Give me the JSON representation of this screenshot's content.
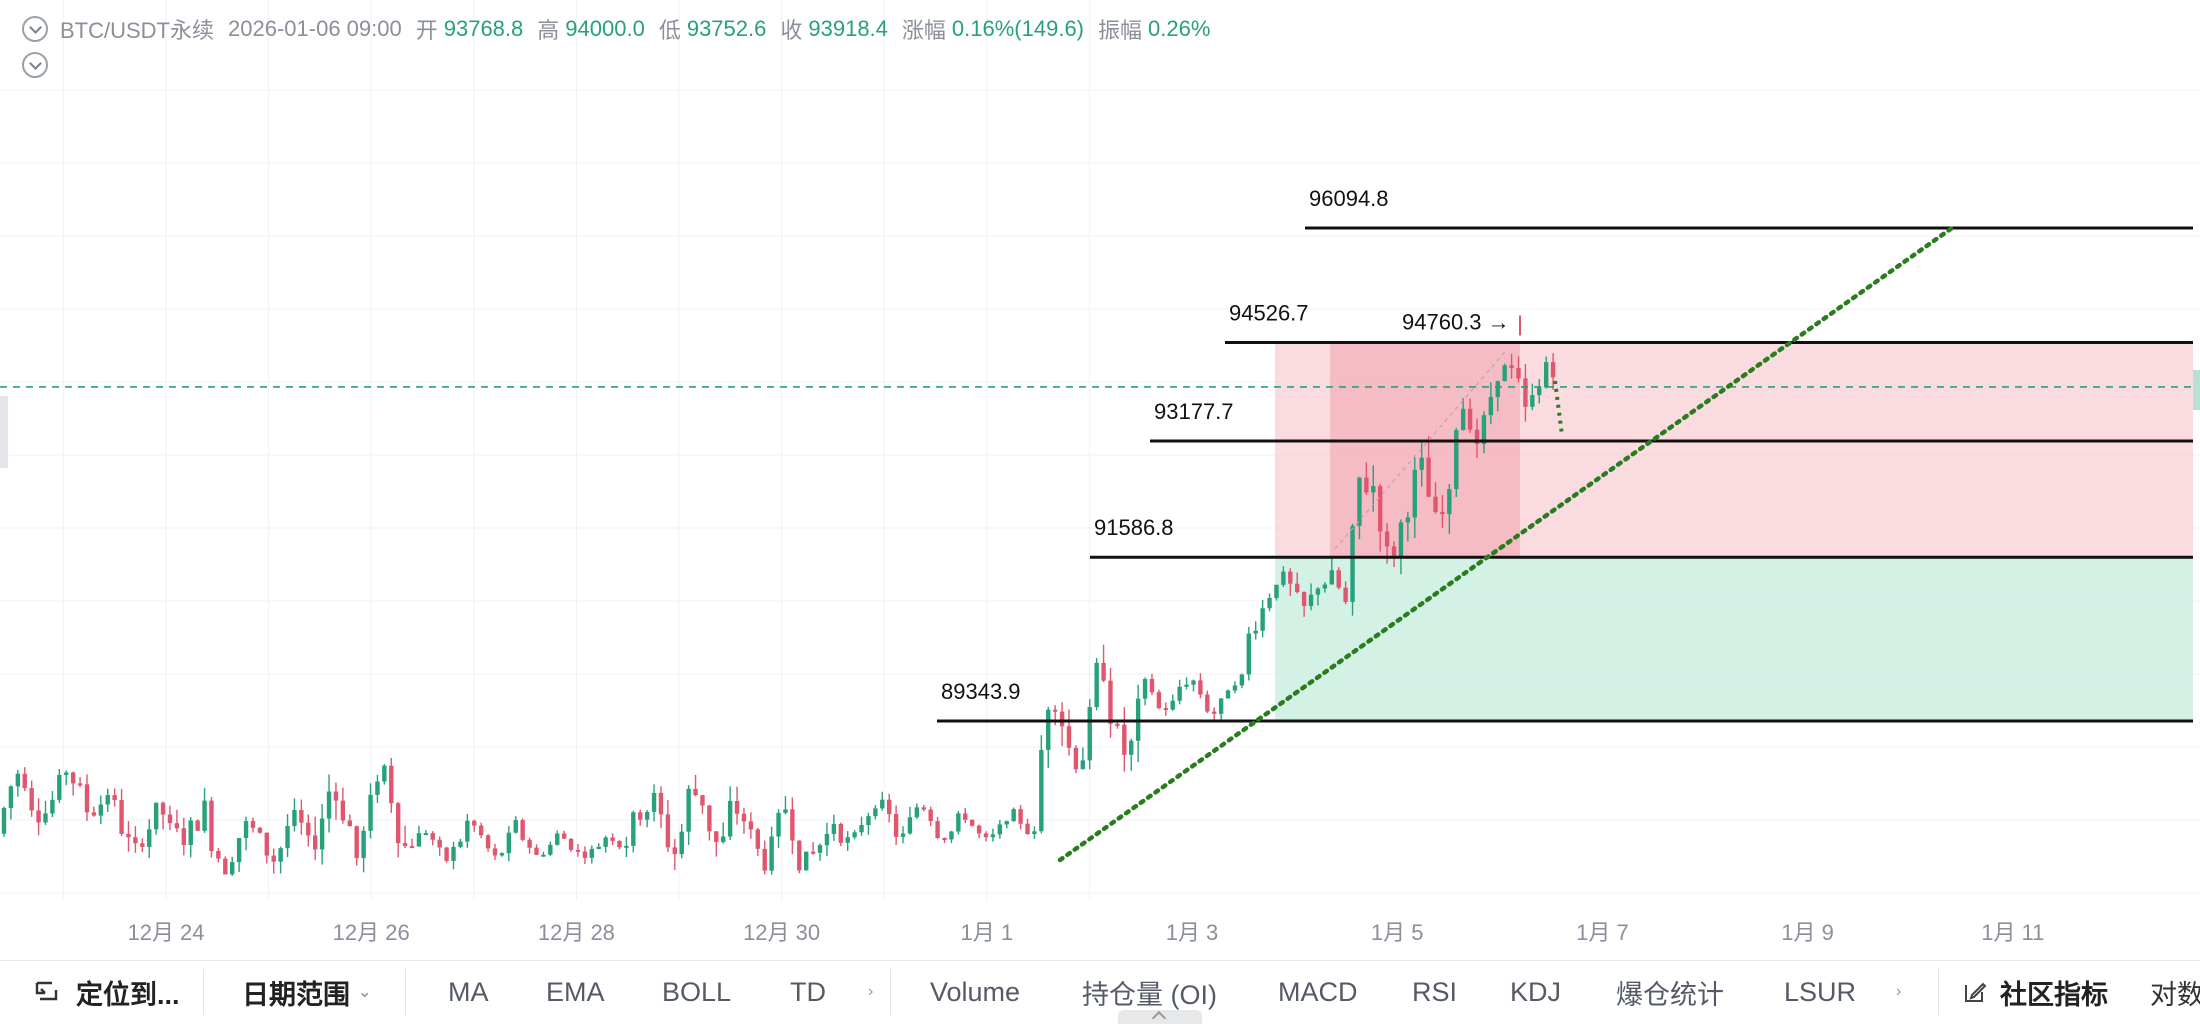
{
  "header": {
    "symbol": "BTC/USDT永续",
    "datetime": "2026-01-06 09:00",
    "open_label": "开",
    "open": "93768.8",
    "high_label": "高",
    "high": "94000.0",
    "low_label": "低",
    "low": "93752.6",
    "close_label": "收",
    "close": "93918.4",
    "change_label": "涨幅",
    "change": "0.16%(149.6)",
    "amplitude_label": "振幅",
    "amplitude": "0.26%"
  },
  "colors": {
    "up": "#26a17b",
    "down": "#e0566e",
    "zone_red": "#f6c4cb",
    "zone_red_dark": "#f0a3ae",
    "zone_green": "#cdeee2",
    "trend": "#2a7d1e",
    "price_line": "#26a17b",
    "level": "#111111"
  },
  "price_axis_hidden": true,
  "chart_data": {
    "type": "candlestick",
    "title": "",
    "x_tick_labels": [
      "12月 24",
      "12月 26",
      "12月 28",
      "12月 30",
      "1月 1",
      "1月 3",
      "1月 5",
      "1月 7",
      "1月 9",
      "1月 11"
    ],
    "levels": [
      {
        "label": "96094.8",
        "value": 96094.8,
        "from": "1月 3"
      },
      {
        "label": "94526.7",
        "value": 94526.7,
        "from": "1月 3"
      },
      {
        "label": "93177.7",
        "value": 93177.7,
        "from": "1月 2"
      },
      {
        "label": "91586.8",
        "value": 91586.8,
        "from": "1月 2"
      },
      {
        "label": "89343.9",
        "value": 89343.9,
        "from": "12月 31"
      }
    ],
    "high_marker": {
      "label": "94760.3 →",
      "value": 94760.3
    },
    "current_price": 93918.4,
    "trendline": {
      "style": "dotted",
      "from": [
        "1月 1",
        88400
      ],
      "to": [
        "1月 10",
        96094.8
      ]
    },
    "zones": [
      {
        "kind": "loss",
        "from_price": 91586.8,
        "to_price": 94526.7
      },
      {
        "kind": "profit",
        "from_price": 89343.9,
        "to_price": 91586.8
      }
    ],
    "candles_approx": [
      {
        "period": "12月 23",
        "low": 87600,
        "high": 89100
      },
      {
        "period": "12月 24",
        "low": 87000,
        "high": 88700
      },
      {
        "period": "12月 25",
        "low": 86900,
        "high": 88400
      },
      {
        "period": "12月 26",
        "low": 87000,
        "high": 89200
      },
      {
        "period": "12月 27",
        "low": 87200,
        "high": 88200
      },
      {
        "period": "12月 28",
        "low": 87300,
        "high": 88000
      },
      {
        "period": "12月 29",
        "low": 87000,
        "high": 89100
      },
      {
        "period": "12月 30",
        "low": 86800,
        "high": 88600
      },
      {
        "period": "12月 31",
        "low": 87400,
        "high": 88600
      },
      {
        "period": "1月 1",
        "low": 87500,
        "high": 88200
      },
      {
        "period": "1月 2",
        "low": 88100,
        "high": 90600
      },
      {
        "period": "1月 3",
        "low": 89200,
        "high": 90200
      },
      {
        "period": "1月 4",
        "low": 90400,
        "high": 91800
      },
      {
        "period": "1月 5",
        "low": 91000,
        "high": 93500
      },
      {
        "period": "1月 6",
        "low": 93000,
        "high": 94760.3
      }
    ]
  },
  "toolbar": {
    "locate": "定位到...",
    "date_range": "日期范围",
    "date_range_chevron": "⌄",
    "indicators_main": [
      "MA",
      "EMA",
      "BOLL",
      "TD"
    ],
    "more1": "›",
    "indicators_sub": [
      "Volume",
      "持仓量 (OI)",
      "MACD",
      "RSI",
      "KDJ",
      "爆仓统计",
      "LSUR"
    ],
    "more2": "›",
    "community": "社区指标",
    "log": "对数"
  }
}
